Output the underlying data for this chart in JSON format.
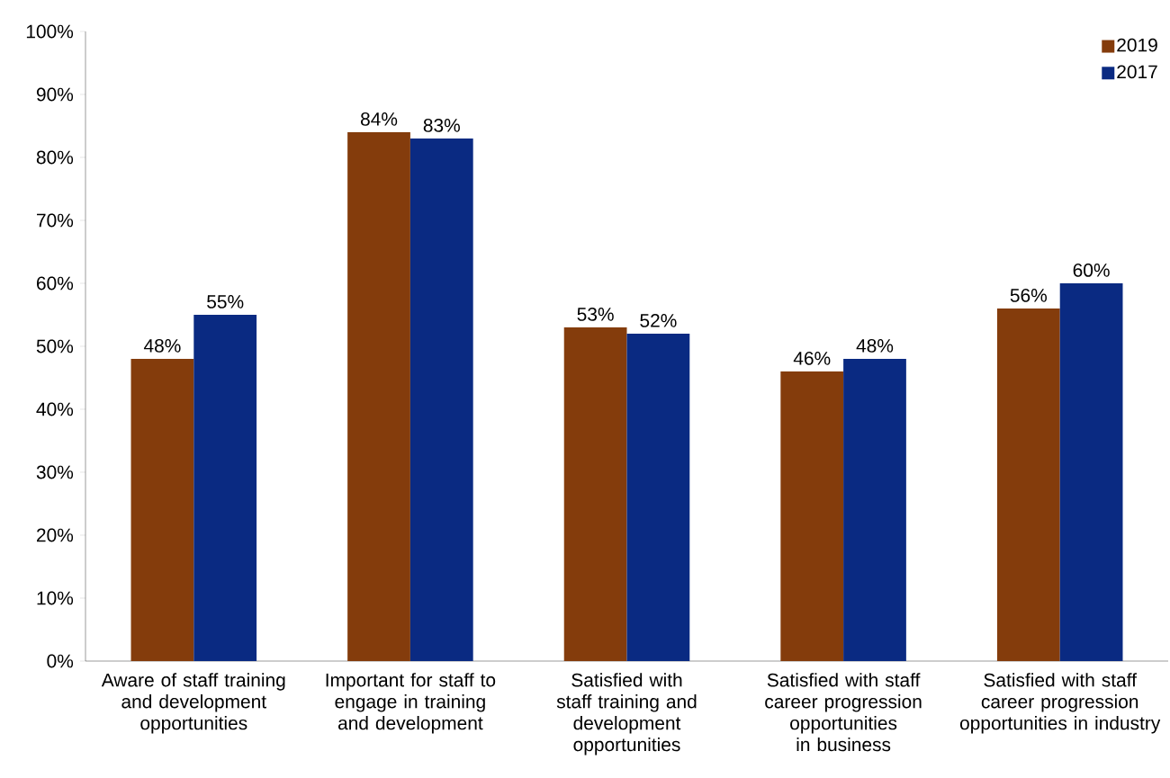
{
  "chart_data": {
    "type": "bar",
    "categories": [
      "Aware of staff training and development opportunities",
      "Important for staff to engage in training and development",
      "Satisfied with staff training and development opportunities",
      "Satisfied with staff career progression opportunities in business",
      "Satisfied with staff career progression opportunities in industry"
    ],
    "series": [
      {
        "name": "2019",
        "color": "#843c0c",
        "values": [
          48,
          84,
          53,
          46,
          56
        ],
        "value_labels": [
          "48%",
          "84%",
          "53%",
          "46%",
          "56%"
        ]
      },
      {
        "name": "2017",
        "color": "#0a2a82",
        "values": [
          55,
          83,
          52,
          48,
          60
        ],
        "value_labels": [
          "55%",
          "83%",
          "52%",
          "48%",
          "60%"
        ]
      }
    ],
    "ylim": [
      0,
      100
    ],
    "yticks": [
      {
        "value": 0,
        "label": "0%"
      },
      {
        "value": 10,
        "label": "10%"
      },
      {
        "value": 20,
        "label": "20%"
      },
      {
        "value": 30,
        "label": "30%"
      },
      {
        "value": 40,
        "label": "40%"
      },
      {
        "value": 50,
        "label": "50%"
      },
      {
        "value": 60,
        "label": "60%"
      },
      {
        "value": 70,
        "label": "70%"
      },
      {
        "value": 80,
        "label": "80%"
      },
      {
        "value": 90,
        "label": "90%"
      },
      {
        "value": 100,
        "label": "100%"
      }
    ],
    "grid": false,
    "legend": "top right"
  }
}
